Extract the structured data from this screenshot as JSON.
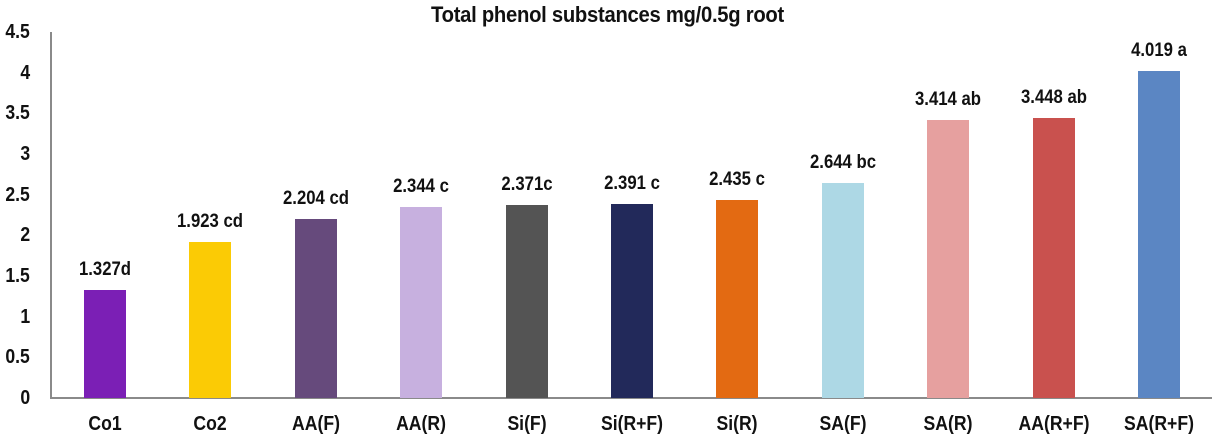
{
  "chart_data": {
    "type": "bar",
    "title": "Total phenol substances mg/0.5g root",
    "xlabel": "",
    "ylabel": "",
    "ylim": [
      0,
      4.5
    ],
    "yticks": [
      "0",
      "0.5",
      "1",
      "1.5",
      "2",
      "2.5",
      "3",
      "3.5",
      "4",
      "4.5"
    ],
    "grid": false,
    "legend": null,
    "categories": [
      "Co1",
      "Co2",
      "AA(F)",
      "AA(R)",
      "Si(F)",
      "Si(R+F)",
      "Si(R)",
      "SA(F)",
      "SA(R)",
      "AA(R+F)",
      "SA(R+F)"
    ],
    "values": [
      1.327,
      1.923,
      2.204,
      2.344,
      2.371,
      2.391,
      2.435,
      2.644,
      3.414,
      3.448,
      4.019
    ],
    "data_labels": [
      "1.327d",
      "1.923 cd",
      "2.204 cd",
      "2.344 c",
      "2.371c",
      "2.391 c",
      "2.435 c",
      "2.644 bc",
      "3.414 ab",
      "3.448 ab",
      "4.019 a"
    ],
    "colors": [
      "#7B1FB5",
      "#FBCB05",
      "#664A7C",
      "#C7B0DF",
      "#545454",
      "#22295A",
      "#E36A12",
      "#ADD8E5",
      "#E6A09F",
      "#C9514E",
      "#5B86C3"
    ]
  }
}
